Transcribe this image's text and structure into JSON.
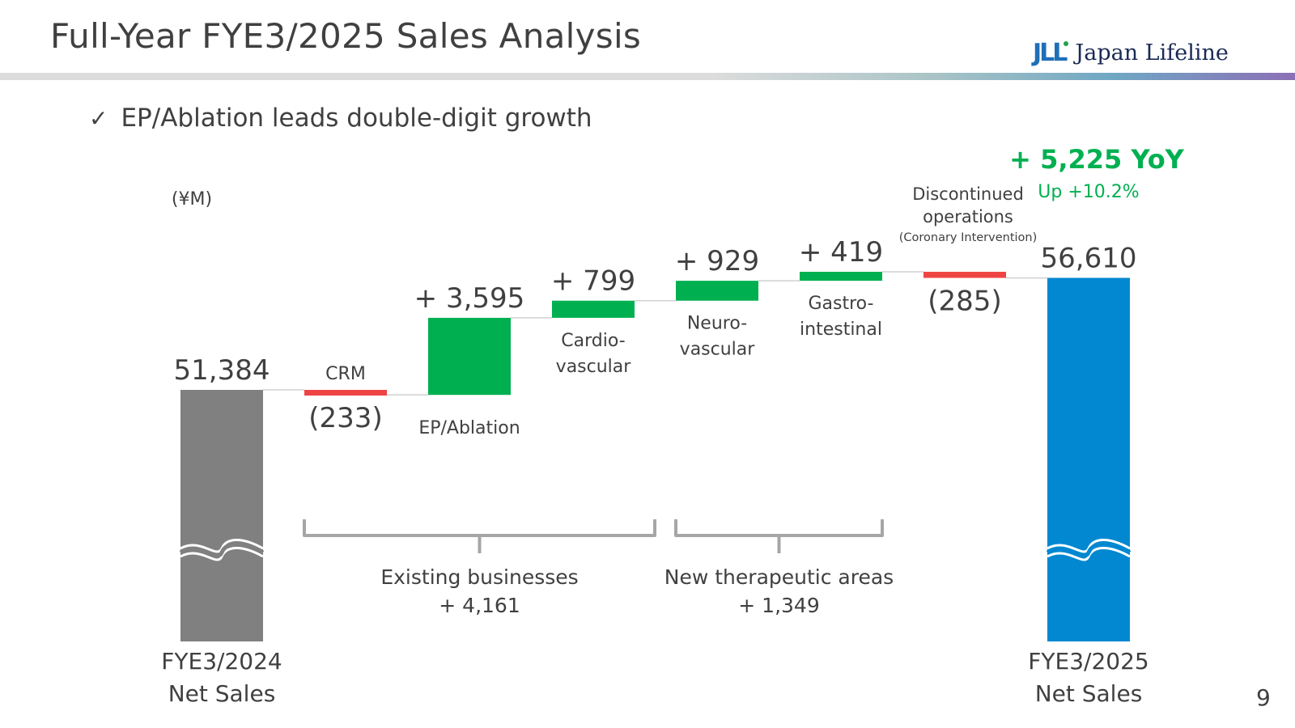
{
  "slide": {
    "title": "Full-Year FYE3/2025 Sales Analysis",
    "logo_text": "Japan Lifeline",
    "logo_mark": "JLL",
    "bullet_icon": "check-icon",
    "bullet": "EP/Ablation leads double-digit growth",
    "page_number": "9"
  },
  "chart_data": {
    "type": "bar",
    "subtype": "waterfall",
    "unit_label": "(¥M)",
    "categories": [
      "FYE3/2024 Net Sales",
      "CRM",
      "EP/Ablation",
      "Cardio-vascular",
      "Neuro-vascular",
      "Gastro-intestinal",
      "Discontinued operations (Coronary Intervention)",
      "FYE3/2025 Net Sales"
    ],
    "values": [
      51384,
      -233,
      3595,
      799,
      929,
      419,
      -285,
      56610
    ],
    "bars": [
      {
        "kind": "total",
        "value": 51384,
        "value_label": "51,384",
        "label_lines": [
          "FYE3/2024",
          "Net Sales"
        ],
        "color": "#808080",
        "axis_break": true
      },
      {
        "kind": "delta",
        "value": -233,
        "value_label": "(233)",
        "label_lines": [
          "CRM"
        ],
        "color": "#ef4444"
      },
      {
        "kind": "delta",
        "value": 3595,
        "value_label": "+ 3,595",
        "label_lines": [
          "EP/Ablation"
        ],
        "color": "#00b050"
      },
      {
        "kind": "delta",
        "value": 799,
        "value_label": "+ 799",
        "label_lines": [
          "Cardio-",
          "vascular"
        ],
        "color": "#00b050"
      },
      {
        "kind": "delta",
        "value": 929,
        "value_label": "+ 929",
        "label_lines": [
          "Neuro-",
          "vascular"
        ],
        "color": "#00b050"
      },
      {
        "kind": "delta",
        "value": 419,
        "value_label": "+ 419",
        "label_lines": [
          "Gastro-",
          "intestinal"
        ],
        "color": "#00b050"
      },
      {
        "kind": "delta",
        "value": -285,
        "value_label": "(285)",
        "label_lines": [
          "Discontinued",
          "operations"
        ],
        "sub_label": "(Coronary Intervention)",
        "color": "#ef4444"
      },
      {
        "kind": "total",
        "value": 56610,
        "value_label": "56,610",
        "label_lines": [
          "FYE3/2025",
          "Net Sales"
        ],
        "color": "#0288d1",
        "axis_break": true
      }
    ],
    "groups": [
      {
        "name": "Existing businesses",
        "total_label": "+ 4,161",
        "from_bar": 1,
        "to_bar": 3
      },
      {
        "name": "New therapeutic areas",
        "total_label": "+ 1,349",
        "from_bar": 4,
        "to_bar": 5
      }
    ],
    "annotation": {
      "headline": "+ 5,225 YoY",
      "subline": "Up +10.2%",
      "color": "#00b050"
    },
    "colors": {
      "increase": "#00b050",
      "decrease": "#ef4444",
      "start_total": "#808080",
      "end_total": "#0288d1",
      "connector": "#d0d0d0",
      "bracket": "#a6a6a6"
    }
  }
}
